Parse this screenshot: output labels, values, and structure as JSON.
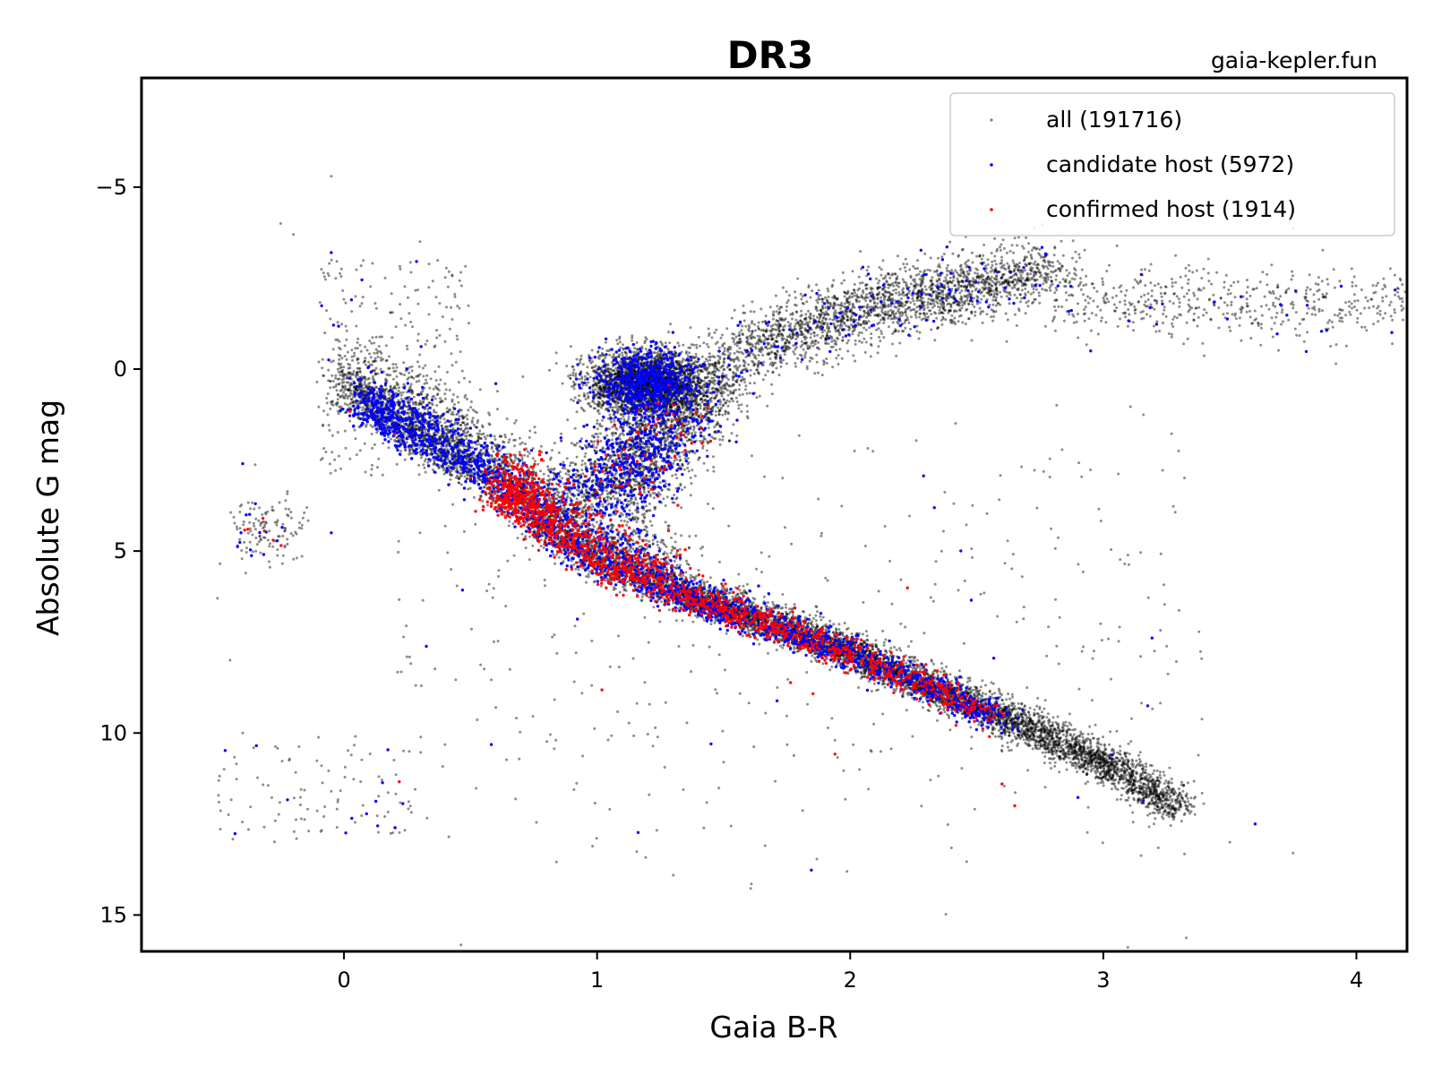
{
  "chart_data": {
    "type": "scatter",
    "title": "DR3",
    "watermark": "gaia-kepler.fun",
    "xlabel": "Gaia B-R",
    "ylabel": "Absolute G mag",
    "xlim": [
      -0.8,
      4.2
    ],
    "ylim": [
      16,
      -8
    ],
    "y_inverted": true,
    "xticks": [
      0,
      1,
      2,
      3,
      4
    ],
    "xtick_labels": [
      "0",
      "1",
      "2",
      "3",
      "4"
    ],
    "yticks": [
      -5,
      0,
      5,
      10,
      15
    ],
    "ytick_labels": [
      "−5",
      "0",
      "5",
      "10",
      "15"
    ],
    "grid": false,
    "legend_position": "top-right",
    "series": [
      {
        "name": "all (191716)",
        "color": "#808080",
        "sample_points": [
          [
            -0.05,
            -5.3
          ],
          [
            -0.25,
            -4.0
          ],
          [
            -0.2,
            -3.7
          ],
          [
            0.3,
            -3.5
          ],
          [
            -0.05,
            -0.2
          ],
          [
            -0.3,
            4.7
          ],
          [
            -0.5,
            6.3
          ],
          [
            -0.45,
            8.0
          ],
          [
            -0.4,
            10.0
          ],
          [
            -0.05,
            11.6
          ],
          [
            0.2,
            12.6
          ],
          [
            0.6,
            9.3
          ],
          [
            1.5,
            10.8
          ],
          [
            3.5,
            13.0
          ],
          [
            3.75,
            13.3
          ],
          [
            3.7,
            -2.0
          ],
          [
            4.2,
            -2.3
          ],
          [
            3.3,
            -1.5
          ],
          [
            2.9,
            -1.8
          ],
          [
            1.9,
            -1.5
          ],
          [
            1.6,
            -1.2
          ],
          [
            1.2,
            0.5
          ],
          [
            1.0,
            1.5
          ],
          [
            2.2,
            7.0
          ],
          [
            2.6,
            10.5
          ],
          [
            3.0,
            11.2
          ],
          [
            3.2,
            12.5
          ],
          [
            0.5,
            1.8
          ],
          [
            0.1,
            0.5
          ],
          [
            0.3,
            4.5
          ]
        ]
      },
      {
        "name": "candidate host (5972)",
        "color": "#0000ff",
        "sample_points": [
          [
            -0.05,
            -3.2
          ],
          [
            -0.4,
            2.6
          ],
          [
            -0.35,
            3.7
          ],
          [
            -0.05,
            4.5
          ],
          [
            0.15,
            1.5
          ],
          [
            0.5,
            2.0
          ],
          [
            0.8,
            2.3
          ],
          [
            1.0,
            3.0
          ],
          [
            1.2,
            1.0
          ],
          [
            1.3,
            0.3
          ],
          [
            1.4,
            1.5
          ],
          [
            1.5,
            5.8
          ],
          [
            1.8,
            6.8
          ],
          [
            2.0,
            7.5
          ],
          [
            2.3,
            8.5
          ],
          [
            2.5,
            9.5
          ],
          [
            2.6,
            10.0
          ],
          [
            2.05,
            -2.8
          ],
          [
            2.3,
            -2.6
          ],
          [
            2.75,
            -2.3
          ],
          [
            3.15,
            -2.6
          ],
          [
            2.95,
            -0.5
          ],
          [
            1.45,
            10.3
          ],
          [
            3.6,
            12.5
          ],
          [
            0.6,
            0.4
          ],
          [
            1.5,
            0.2
          ],
          [
            1.55,
            2.0
          ]
        ]
      },
      {
        "name": "confirmed host (1914)",
        "color": "#ff0000",
        "sample_points": [
          [
            -0.38,
            4.4
          ],
          [
            -0.32,
            4.1
          ],
          [
            -0.28,
            4.7
          ],
          [
            0.2,
            1.8
          ],
          [
            0.5,
            3.0
          ],
          [
            0.75,
            4.0
          ],
          [
            0.85,
            4.5
          ],
          [
            0.95,
            5.0
          ],
          [
            1.1,
            5.8
          ],
          [
            1.3,
            6.6
          ],
          [
            1.6,
            7.3
          ],
          [
            1.9,
            8.0
          ],
          [
            2.2,
            8.7
          ],
          [
            2.4,
            9.2
          ],
          [
            2.55,
            10.1
          ],
          [
            2.6,
            11.4
          ],
          [
            2.65,
            12.0
          ],
          [
            0.7,
            3.5
          ],
          [
            1.0,
            4.0
          ],
          [
            0.9,
            5.5
          ]
        ]
      }
    ],
    "structure": {
      "main_sequence": {
        "x_range": [
          0.0,
          3.3
        ],
        "x_control": [
          0.0,
          0.3,
          0.6,
          0.8,
          1.0,
          1.3,
          1.6,
          2.0,
          2.4,
          2.8,
          3.1,
          3.3
        ],
        "y_control": [
          0.9,
          2.2,
          3.4,
          4.6,
          5.6,
          6.3,
          7.0,
          8.0,
          9.2,
          10.4,
          11.4,
          12.3
        ],
        "spread": 0.5
      },
      "subgiant_branch": {
        "x_control": [
          0.95,
          1.1,
          1.2,
          1.25
        ],
        "y_control": [
          3.5,
          3.0,
          2.0,
          1.0
        ]
      },
      "red_clump": {
        "center": [
          1.2,
          0.35
        ],
        "spread": [
          0.12,
          0.45
        ]
      },
      "giant_branch": {
        "x_control": [
          1.3,
          1.6,
          1.9,
          2.2,
          2.5,
          2.8
        ],
        "y_control": [
          1.8,
          -0.6,
          -1.3,
          -1.9,
          -2.3,
          -2.7
        ]
      },
      "agb_tail": {
        "x_range": [
          2.8,
          4.2
        ],
        "y_center": -1.8,
        "spread": 0.5
      },
      "white_dwarfs": {
        "x_range": [
          -0.5,
          0.3
        ],
        "y_range": [
          10.0,
          13.0
        ]
      },
      "blue_clump": {
        "center": [
          -0.3,
          4.5
        ],
        "spread": [
          0.08,
          0.5
        ]
      }
    }
  }
}
